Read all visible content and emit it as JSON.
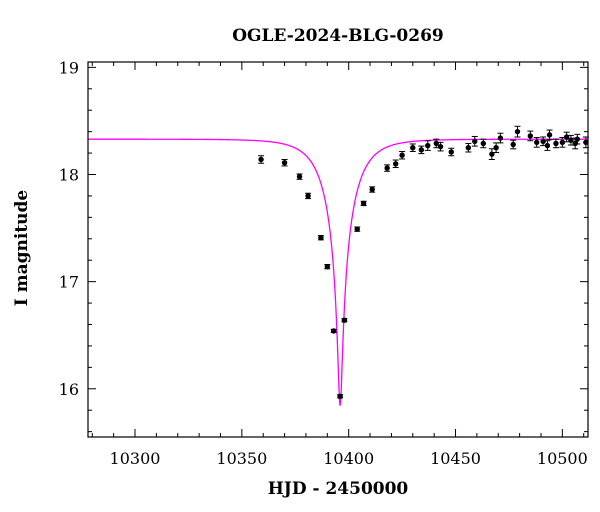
{
  "chart_data": {
    "type": "scatter",
    "title": "OGLE-2024-BLG-0269",
    "xlabel": "HJD - 2450000",
    "ylabel": "I magnitude",
    "xlim": [
      10278,
      10512
    ],
    "ylim": [
      19.05,
      15.55
    ],
    "y_inverted": true,
    "xticks": [
      10300,
      10350,
      10400,
      10450,
      10500
    ],
    "yticks": [
      16,
      17,
      18,
      19
    ],
    "x_minor_step": 10,
    "y_minor_step": 0.2,
    "grid": false,
    "colors": {
      "points": "#000000",
      "model": "#ff00ff",
      "axes": "#000000"
    },
    "model": {
      "name": "",
      "baseline_mag": 18.33,
      "peak_mag": 15.84,
      "t0": 10396.0,
      "tE": 14.0,
      "u0": 0.0625
    },
    "series": [
      {
        "name": "",
        "x": [
          10359,
          10370,
          10377,
          10381,
          10387,
          10390,
          10393,
          10396,
          10398,
          10404,
          10407,
          10411,
          10418,
          10422,
          10425,
          10430,
          10434,
          10437,
          10441,
          10443,
          10448,
          10456,
          10459,
          10463,
          10467,
          10469,
          10471,
          10477,
          10479,
          10485,
          10488,
          10491,
          10493,
          10494,
          10497,
          10500,
          10502,
          10504,
          10506,
          10507,
          10511
        ],
        "y": [
          18.14,
          18.11,
          17.98,
          17.8,
          17.41,
          17.14,
          16.54,
          15.93,
          16.64,
          17.49,
          17.73,
          17.86,
          18.06,
          18.1,
          18.18,
          18.25,
          18.23,
          18.27,
          18.29,
          18.26,
          18.21,
          18.25,
          18.31,
          18.29,
          18.19,
          18.25,
          18.34,
          18.28,
          18.4,
          18.36,
          18.3,
          18.31,
          18.27,
          18.37,
          18.29,
          18.3,
          18.35,
          18.32,
          18.29,
          18.33,
          18.3
        ],
        "yerr": [
          0.035,
          0.03,
          0.025,
          0.025,
          0.02,
          0.02,
          0.015,
          0.015,
          0.015,
          0.02,
          0.02,
          0.025,
          0.03,
          0.035,
          0.035,
          0.035,
          0.035,
          0.045,
          0.04,
          0.04,
          0.035,
          0.04,
          0.045,
          0.04,
          0.05,
          0.045,
          0.045,
          0.04,
          0.05,
          0.045,
          0.045,
          0.04,
          0.045,
          0.045,
          0.04,
          0.045,
          0.045,
          0.045,
          0.05,
          0.045,
          0.05
        ]
      }
    ]
  }
}
